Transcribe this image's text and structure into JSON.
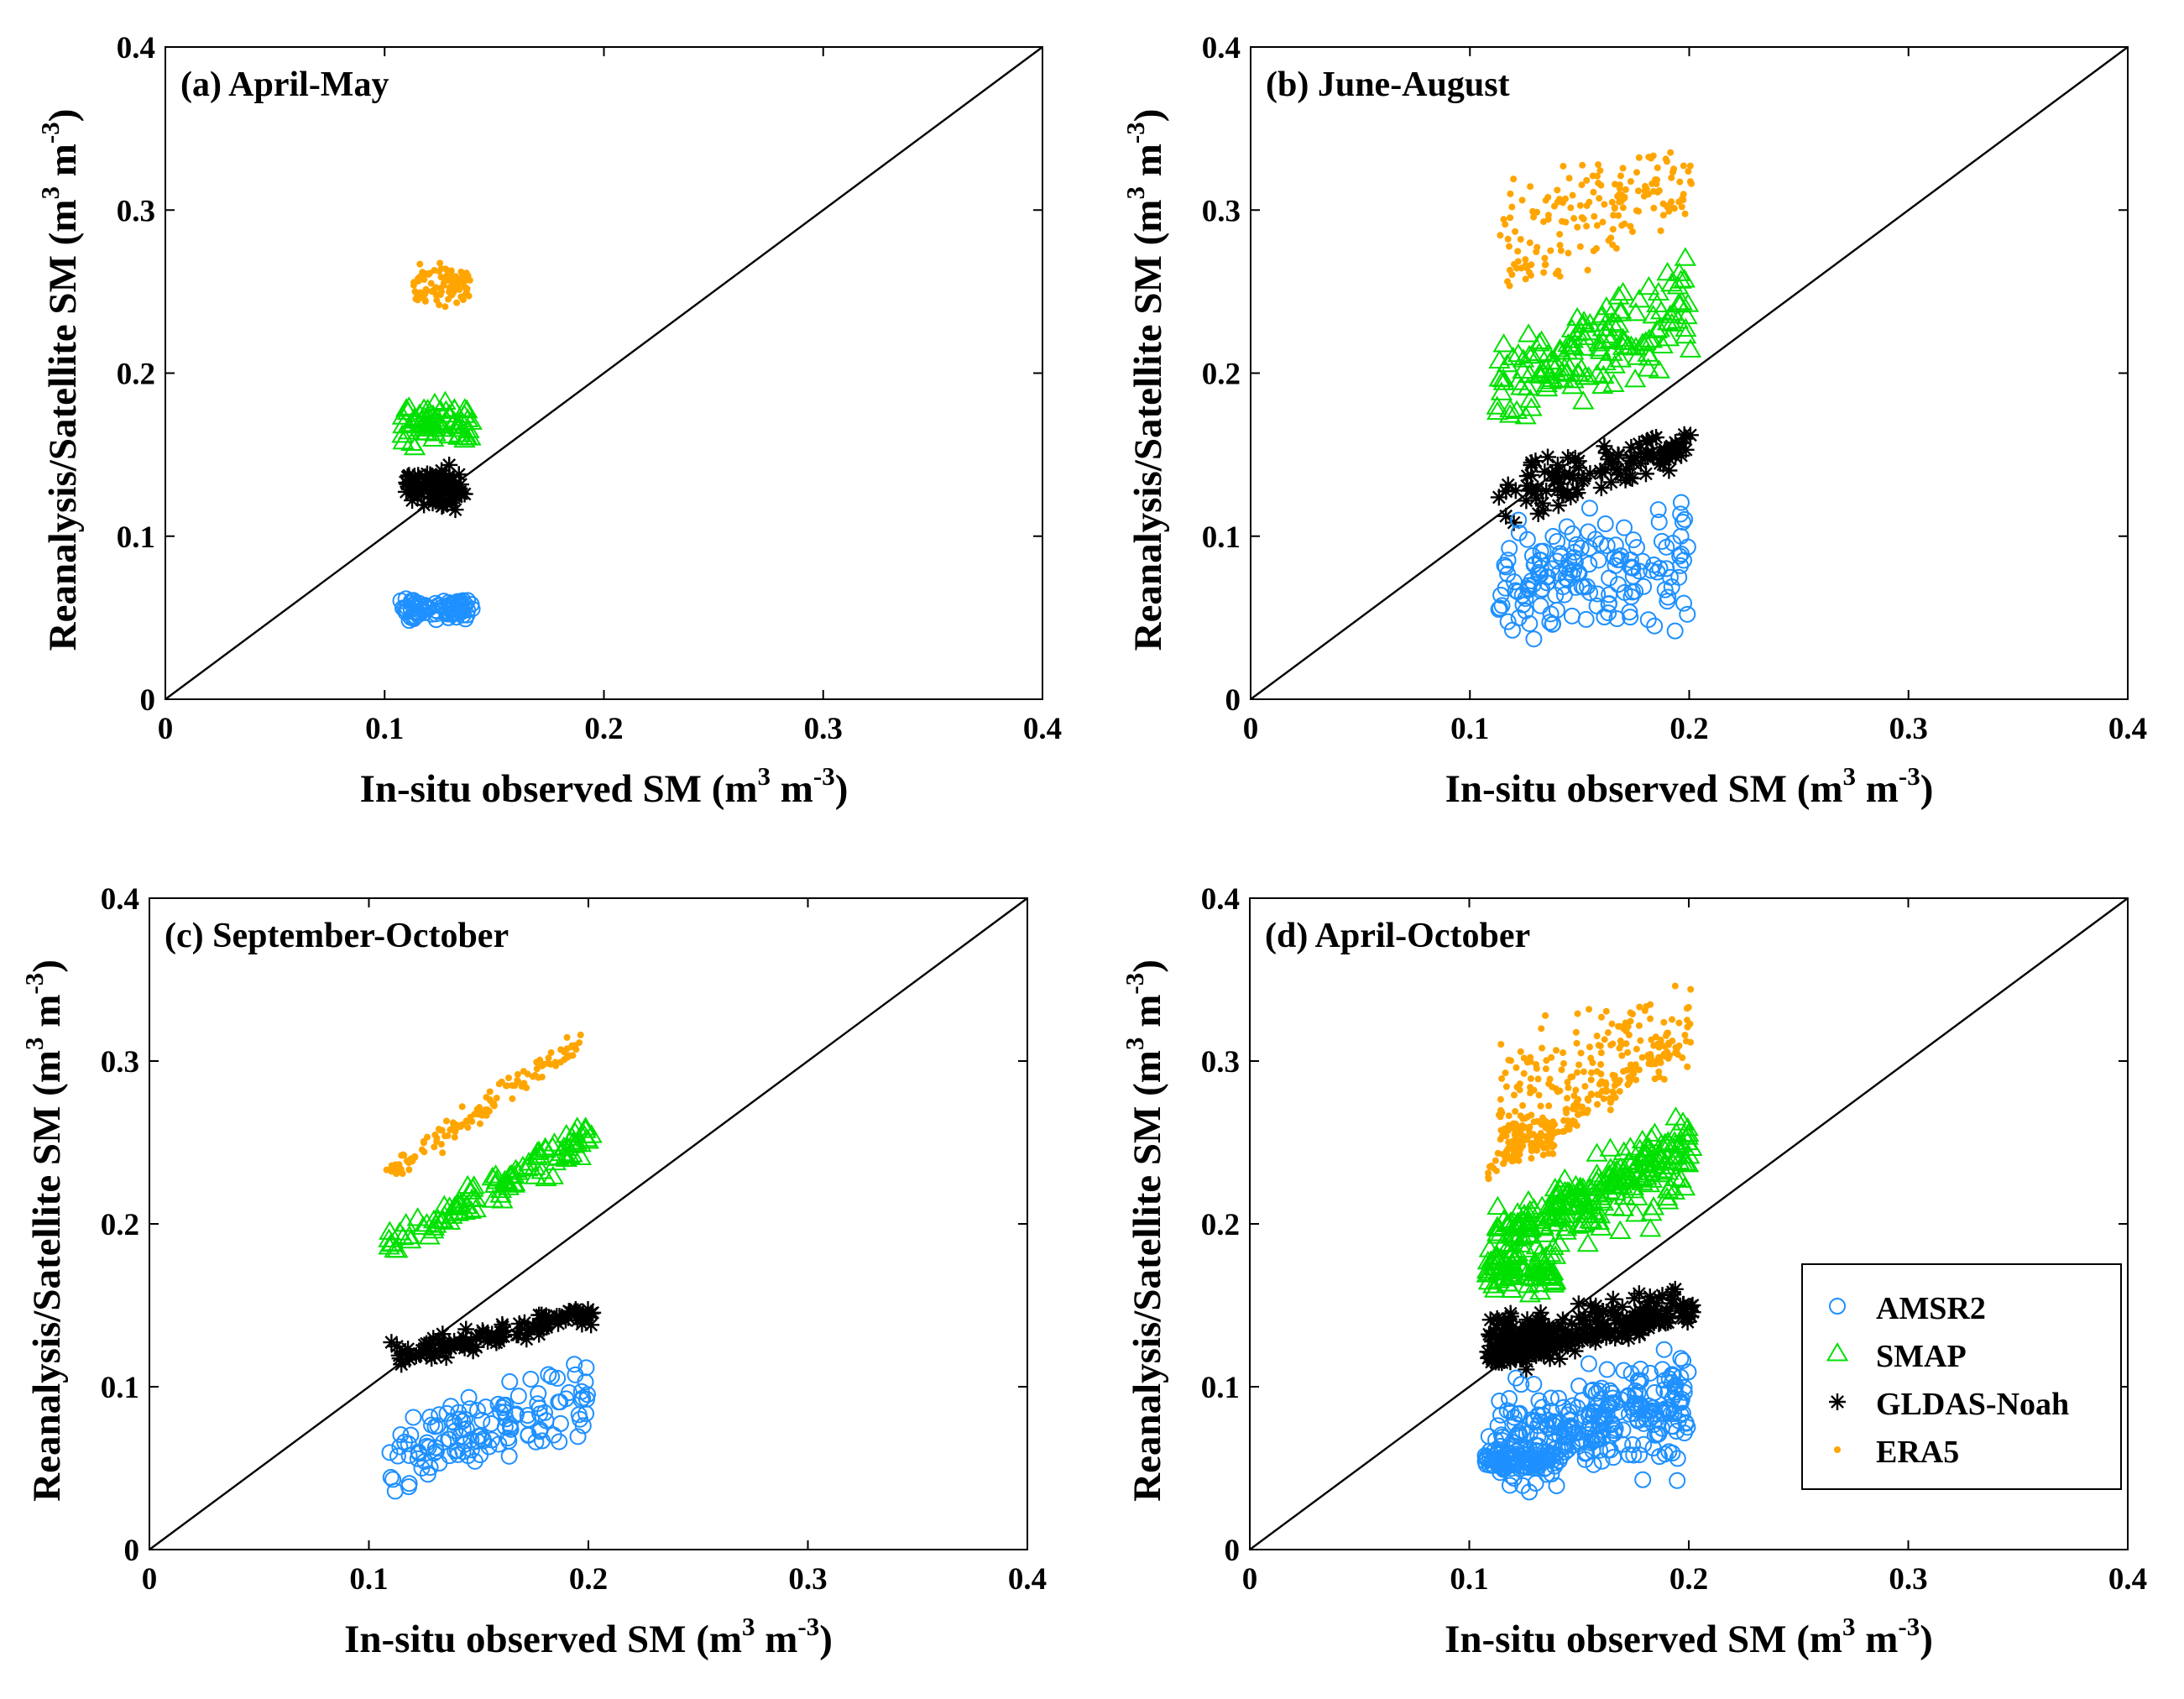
{
  "figure": {
    "background": "#ffffff"
  },
  "series_styles": {
    "AMSR2": {
      "marker": "circle",
      "color": "#1E90FF"
    },
    "SMAP": {
      "marker": "triangle",
      "color": "#00E000"
    },
    "GLDAS-Noah": {
      "marker": "asterisk",
      "color": "#000000"
    },
    "ERA5": {
      "marker": "dot",
      "color": "#FFA500"
    }
  },
  "legend": {
    "panel": 3,
    "position": "bottom-right",
    "entries": [
      {
        "name": "AMSR2",
        "marker": "circle",
        "color": "#1E90FF"
      },
      {
        "name": "SMAP",
        "marker": "triangle",
        "color": "#00E000"
      },
      {
        "name": "GLDAS-Noah",
        "marker": "asterisk",
        "color": "#000000"
      },
      {
        "name": "ERA5",
        "marker": "dot",
        "color": "#FFA500"
      }
    ]
  },
  "chart_data": [
    {
      "type": "scatter",
      "title": "(a) April-May",
      "xlabel": "In-situ observed SM (m",
      "ylabel": "Reanalysis/Satellite SM (m",
      "unit_sup": "3",
      "unit_mid": " m",
      "unit_neg": "-3",
      "unit_close": ")",
      "xlim": [
        0,
        0.4
      ],
      "ylim": [
        0,
        0.4
      ],
      "xticks": [
        "0",
        "0.1",
        "0.2",
        "0.3",
        "0.4"
      ],
      "yticks": [
        "0",
        "0.1",
        "0.2",
        "0.3",
        "0.4"
      ],
      "reference_line": "1:1",
      "series": [
        {
          "name": "ERA5",
          "clusters": [
            {
              "n": 90,
              "x": [
                0.113,
                0.139
              ],
              "y0": [
                0.245,
                0.262
              ],
              "y1": [
                0.245,
                0.262
              ],
              "spread": 0.017
            }
          ]
        },
        {
          "name": "SMAP",
          "clusters": [
            {
              "n": 70,
              "x": [
                0.108,
                0.14
              ],
              "y0": [
                0.16,
                0.178
              ],
              "y1": [
                0.16,
                0.178
              ],
              "spread": 0.016
            }
          ]
        },
        {
          "name": "GLDAS-Noah",
          "clusters": [
            {
              "n": 80,
              "x": [
                0.109,
                0.137
              ],
              "y0": [
                0.125,
                0.133
              ],
              "y1": [
                0.125,
                0.133
              ],
              "spread": 0.028
            }
          ]
        },
        {
          "name": "AMSR2",
          "clusters": [
            {
              "n": 85,
              "x": [
                0.107,
                0.14
              ],
              "y0": [
                0.052,
                0.058
              ],
              "y1": [
                0.052,
                0.058
              ],
              "spread": 0.012
            }
          ]
        }
      ]
    },
    {
      "type": "scatter",
      "title": "(b) June-August",
      "xlabel": "In-situ observed SM (m",
      "ylabel": "Reanalysis/Satellite SM (m",
      "unit_sup": "3",
      "unit_mid": " m",
      "unit_neg": "-3",
      "unit_close": ")",
      "xlim": [
        0,
        0.4
      ],
      "ylim": [
        0,
        0.4
      ],
      "xticks": [
        "0",
        "0.1",
        "0.2",
        "0.3",
        "0.4"
      ],
      "yticks": [
        "0",
        "0.1",
        "0.2",
        "0.3",
        "0.4"
      ],
      "reference_line": "1:1",
      "series": [
        {
          "name": "ERA5",
          "clusters": [
            {
              "n": 170,
              "x": [
                0.113,
                0.201
              ],
              "y0": [
                0.25,
                0.31
              ],
              "y1": [
                0.3,
                0.345
              ],
              "spread": 0.036
            }
          ]
        },
        {
          "name": "SMAP",
          "clusters": [
            {
              "n": 150,
              "x": [
                0.112,
                0.201
              ],
              "y0": [
                0.17,
                0.205
              ],
              "y1": [
                0.22,
                0.262
              ],
              "spread": 0.036
            }
          ]
        },
        {
          "name": "GLDAS-Noah",
          "clusters": [
            {
              "n": 110,
              "x": [
                0.113,
                0.201
              ],
              "y0": [
                0.11,
                0.14
              ],
              "y1": [
                0.15,
                0.16
              ],
              "spread": 0.022
            }
          ]
        },
        {
          "name": "AMSR2",
          "clusters": [
            {
              "n": 160,
              "x": [
                0.113,
                0.2
              ],
              "y0": [
                0.055,
                0.085
              ],
              "y1": [
                0.06,
                0.11
              ],
              "spread": 0.06
            }
          ]
        }
      ]
    },
    {
      "type": "scatter",
      "title": "(c) September-October",
      "xlabel": "In-situ observed SM (m",
      "ylabel": "Reanalysis/Satellite SM (m",
      "unit_sup": "3",
      "unit_mid": " m",
      "unit_neg": "-3",
      "unit_close": ")",
      "xlim": [
        0,
        0.4
      ],
      "ylim": [
        0,
        0.4
      ],
      "xticks": [
        "0",
        "0.1",
        "0.2",
        "0.3",
        "0.4"
      ],
      "yticks": [
        "0",
        "0.1",
        "0.2",
        "0.3",
        "0.4"
      ],
      "reference_line": "1:1",
      "series": [
        {
          "name": "ERA5",
          "clusters": [
            {
              "n": 130,
              "x": [
                0.108,
                0.201
              ],
              "y0": [
                0.226,
                0.236
              ],
              "y1": [
                0.31,
                0.322
              ],
              "spread": 0.014
            }
          ]
        },
        {
          "name": "SMAP",
          "clusters": [
            {
              "n": 110,
              "x": [
                0.108,
                0.202
              ],
              "y0": [
                0.182,
                0.192
              ],
              "y1": [
                0.245,
                0.262
              ],
              "spread": 0.016
            }
          ]
        },
        {
          "name": "GLDAS-Noah",
          "clusters": [
            {
              "n": 110,
              "x": [
                0.108,
                0.202
              ],
              "y0": [
                0.114,
                0.12
              ],
              "y1": [
                0.142,
                0.15
              ],
              "spread": 0.014
            }
          ]
        },
        {
          "name": "AMSR2",
          "clusters": [
            {
              "n": 130,
              "x": [
                0.108,
                0.2
              ],
              "y0": [
                0.048,
                0.06
              ],
              "y1": [
                0.075,
                0.11
              ],
              "spread": 0.045
            }
          ]
        }
      ]
    },
    {
      "type": "scatter",
      "title": "(d) April-October",
      "xlabel": "In-situ observed SM (m",
      "ylabel": "Reanalysis/Satellite SM (m",
      "unit_sup": "3",
      "unit_mid": " m",
      "unit_neg": "-3",
      "unit_close": ")",
      "xlim": [
        0,
        0.4
      ],
      "ylim": [
        0,
        0.4
      ],
      "xticks": [
        "0",
        "0.1",
        "0.2",
        "0.3",
        "0.4"
      ],
      "yticks": [
        "0",
        "0.1",
        "0.2",
        "0.3",
        "0.4"
      ],
      "reference_line": "1:1",
      "series": [
        {
          "name": "ERA5",
          "clusters": [
            {
              "n": 90,
              "x": [
                0.113,
                0.139
              ],
              "y0": [
                0.245,
                0.262
              ],
              "y1": [
                0.245,
                0.262
              ],
              "spread": 0.017
            },
            {
              "n": 170,
              "x": [
                0.113,
                0.201
              ],
              "y0": [
                0.25,
                0.31
              ],
              "y1": [
                0.3,
                0.345
              ],
              "spread": 0.036
            },
            {
              "n": 130,
              "x": [
                0.108,
                0.201
              ],
              "y0": [
                0.226,
                0.236
              ],
              "y1": [
                0.31,
                0.322
              ],
              "spread": 0.014
            }
          ]
        },
        {
          "name": "SMAP",
          "clusters": [
            {
              "n": 70,
              "x": [
                0.108,
                0.14
              ],
              "y0": [
                0.16,
                0.178
              ],
              "y1": [
                0.16,
                0.178
              ],
              "spread": 0.016
            },
            {
              "n": 150,
              "x": [
                0.112,
                0.201
              ],
              "y0": [
                0.17,
                0.205
              ],
              "y1": [
                0.22,
                0.262
              ],
              "spread": 0.036
            },
            {
              "n": 110,
              "x": [
                0.108,
                0.202
              ],
              "y0": [
                0.182,
                0.192
              ],
              "y1": [
                0.245,
                0.262
              ],
              "spread": 0.016
            }
          ]
        },
        {
          "name": "GLDAS-Noah",
          "clusters": [
            {
              "n": 80,
              "x": [
                0.109,
                0.137
              ],
              "y0": [
                0.125,
                0.133
              ],
              "y1": [
                0.125,
                0.133
              ],
              "spread": 0.028
            },
            {
              "n": 110,
              "x": [
                0.113,
                0.201
              ],
              "y0": [
                0.11,
                0.14
              ],
              "y1": [
                0.15,
                0.16
              ],
              "spread": 0.022
            },
            {
              "n": 110,
              "x": [
                0.108,
                0.202
              ],
              "y0": [
                0.114,
                0.12
              ],
              "y1": [
                0.142,
                0.15
              ],
              "spread": 0.014
            }
          ]
        },
        {
          "name": "AMSR2",
          "clusters": [
            {
              "n": 85,
              "x": [
                0.107,
                0.14
              ],
              "y0": [
                0.052,
                0.058
              ],
              "y1": [
                0.052,
                0.058
              ],
              "spread": 0.012
            },
            {
              "n": 160,
              "x": [
                0.113,
                0.2
              ],
              "y0": [
                0.055,
                0.085
              ],
              "y1": [
                0.06,
                0.11
              ],
              "spread": 0.06
            },
            {
              "n": 130,
              "x": [
                0.108,
                0.2
              ],
              "y0": [
                0.048,
                0.06
              ],
              "y1": [
                0.075,
                0.11
              ],
              "spread": 0.045
            }
          ]
        }
      ]
    }
  ]
}
